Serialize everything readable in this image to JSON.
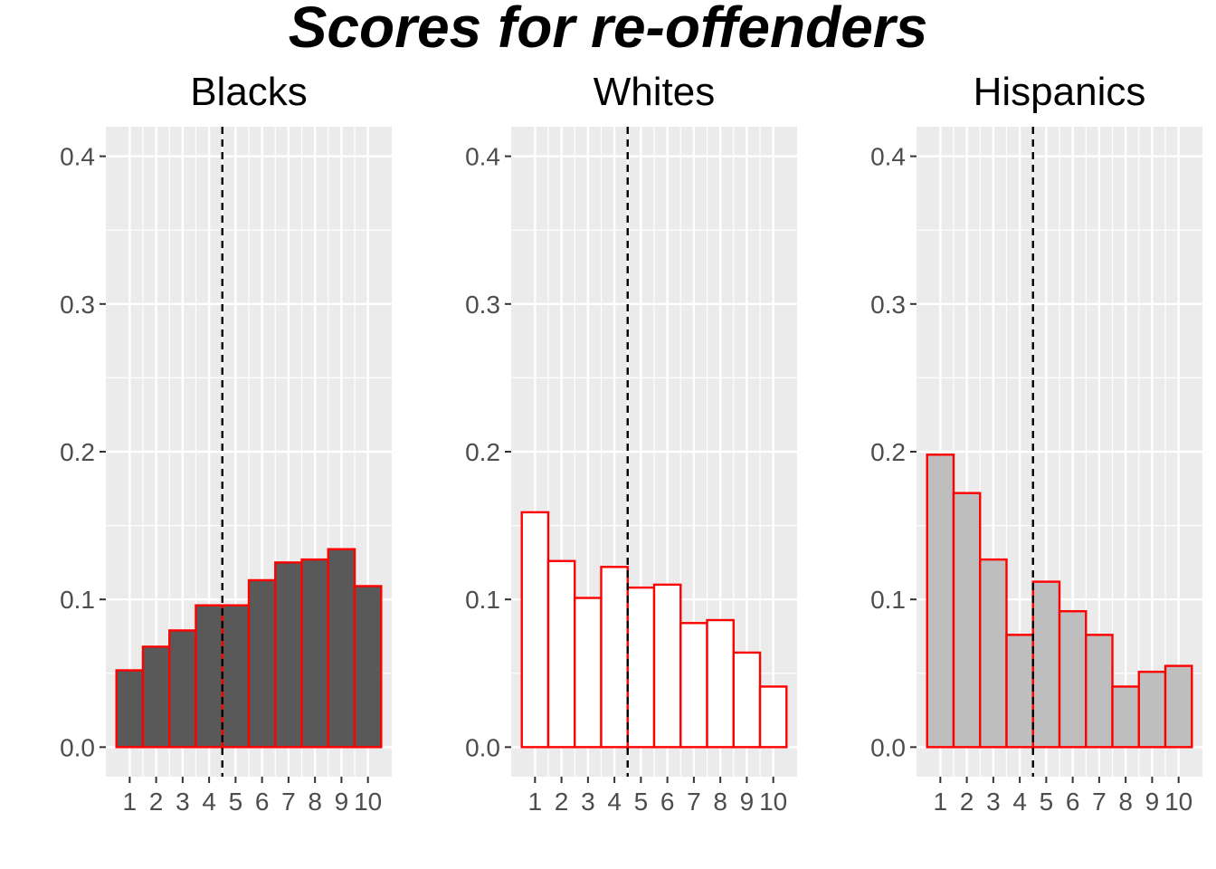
{
  "title": "Scores for re-offenders",
  "chart_data": [
    {
      "type": "bar",
      "panel_title": "Blacks",
      "categories": [
        "1",
        "2",
        "3",
        "4",
        "5",
        "6",
        "7",
        "8",
        "9",
        "10"
      ],
      "values": [
        0.052,
        0.068,
        0.079,
        0.096,
        0.096,
        0.113,
        0.125,
        0.127,
        0.134,
        0.109
      ],
      "fill": "#595959",
      "outline": "#ff0000",
      "ylim": [
        -0.02,
        0.42
      ],
      "yticks": [
        0.0,
        0.1,
        0.2,
        0.3,
        0.4
      ],
      "ytick_labels": [
        "0.0",
        "0.1",
        "0.2",
        "0.3",
        "0.4"
      ],
      "vline_x": 4.5,
      "vline_style": "dashed",
      "grid": true
    },
    {
      "type": "bar",
      "panel_title": "Whites",
      "categories": [
        "1",
        "2",
        "3",
        "4",
        "5",
        "6",
        "7",
        "8",
        "9",
        "10"
      ],
      "values": [
        0.159,
        0.126,
        0.101,
        0.122,
        0.108,
        0.11,
        0.084,
        0.086,
        0.064,
        0.041
      ],
      "fill": "#ffffff",
      "outline": "#ff0000",
      "ylim": [
        -0.02,
        0.42
      ],
      "yticks": [
        0.0,
        0.1,
        0.2,
        0.3,
        0.4
      ],
      "ytick_labels": [
        "0.0",
        "0.1",
        "0.2",
        "0.3",
        "0.4"
      ],
      "vline_x": 4.5,
      "vline_style": "dashed",
      "grid": true
    },
    {
      "type": "bar",
      "panel_title": "Hispanics",
      "categories": [
        "1",
        "2",
        "3",
        "4",
        "5",
        "6",
        "7",
        "8",
        "9",
        "10"
      ],
      "values": [
        0.198,
        0.172,
        0.127,
        0.076,
        0.112,
        0.092,
        0.076,
        0.041,
        0.051,
        0.055
      ],
      "fill": "#bebebe",
      "outline": "#ff0000",
      "ylim": [
        -0.02,
        0.42
      ],
      "yticks": [
        0.0,
        0.1,
        0.2,
        0.3,
        0.4
      ],
      "ytick_labels": [
        "0.0",
        "0.1",
        "0.2",
        "0.3",
        "0.4"
      ],
      "vline_x": 4.5,
      "vline_style": "dashed",
      "grid": true
    }
  ],
  "colors": {
    "panel_background": "#ebebeb",
    "grid": "#ffffff",
    "tick_text": "#4d4d4d",
    "tick_mark": "#333333",
    "vline": "#000000"
  }
}
